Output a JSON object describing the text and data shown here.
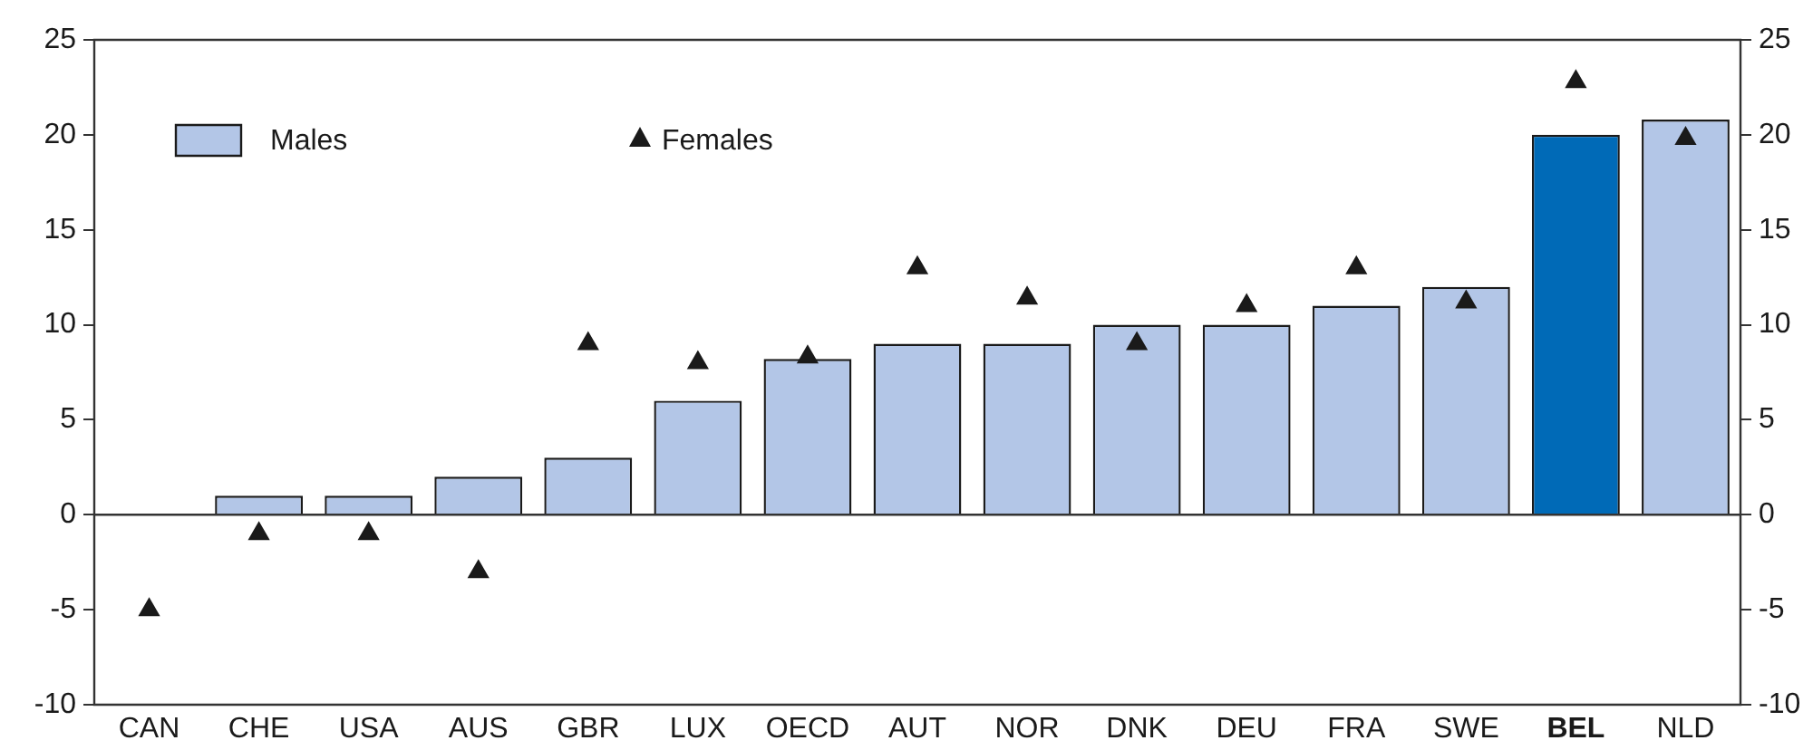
{
  "chart_data": {
    "type": "bar",
    "categories": [
      "CAN",
      "CHE",
      "USA",
      "AUS",
      "GBR",
      "LUX",
      "OECD",
      "AUT",
      "NOR",
      "DNK",
      "DEU",
      "FRA",
      "SWE",
      "BEL",
      "NLD"
    ],
    "series": [
      {
        "name": "Males",
        "color": "#b3c6e7",
        "colors": [
          "#b3c6e7",
          "#b3c6e7",
          "#b3c6e7",
          "#b3c6e7",
          "#b3c6e7",
          "#b3c6e7",
          "#b3c6e7",
          "#b3c6e7",
          "#b3c6e7",
          "#b3c6e7",
          "#b3c6e7",
          "#b3c6e7",
          "#b3c6e7",
          "#006ab7",
          "#b3c6e7"
        ],
        "values": [
          0,
          1,
          1,
          2,
          3,
          6,
          8.2,
          9,
          9,
          10,
          10,
          11,
          12,
          20,
          20.8
        ]
      },
      {
        "name": "Females",
        "type": "scatter",
        "color": "#1a1a1a",
        "x": [
          "CAN",
          "CHE",
          "USA",
          "AUS",
          "GBR",
          "LUX",
          "OECD",
          "AUT",
          "NOR",
          "DNK",
          "DEU",
          "FRA",
          "SWE",
          "BEL",
          "NLD"
        ],
        "values": [
          -5,
          -1,
          -1,
          -3,
          9,
          8,
          8.3,
          13,
          11.4,
          9,
          11,
          13,
          11.2,
          22.8,
          19.8
        ]
      }
    ],
    "ylim": [
      -10,
      25
    ],
    "yticks": [
      -10,
      -5,
      0,
      5,
      10,
      15,
      20,
      25
    ],
    "y2lim": [
      -10,
      25
    ],
    "y2ticks": [
      -10,
      -5,
      0,
      5,
      10,
      15,
      20,
      25
    ],
    "ref_lines": [
      {
        "axis": "y",
        "value": 0
      }
    ],
    "marker": "triangle",
    "legend": "top left"
  }
}
